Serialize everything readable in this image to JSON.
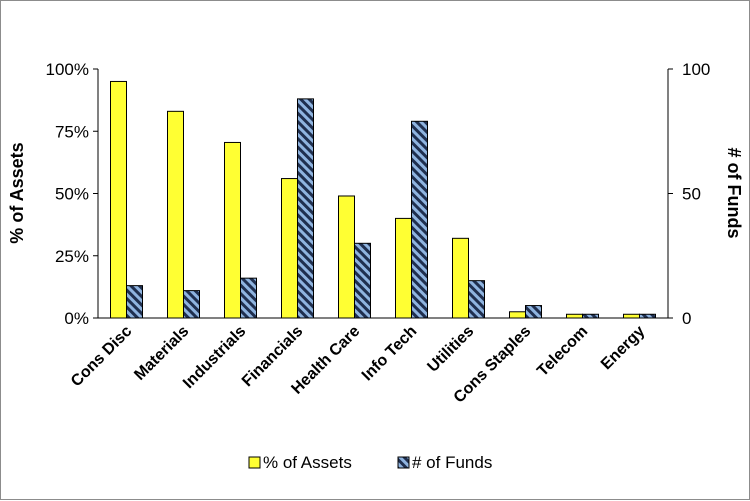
{
  "chart_data": {
    "type": "bar",
    "title": "",
    "categories": [
      "Cons Disc",
      "Materials",
      "Industrials",
      "Financials",
      "Health Care",
      "Info Tech",
      "Utilities",
      "Cons Staples",
      "Telecom",
      "Energy"
    ],
    "series": [
      {
        "name": "% of Assets",
        "axis": "left",
        "color": "#ffff33",
        "values": [
          95,
          83,
          70.5,
          56,
          49,
          40,
          32,
          2.5,
          1.5,
          1.5
        ]
      },
      {
        "name": "# of Funds",
        "axis": "right",
        "color": "#1f2f4f",
        "pattern_color": "#8fb4e0",
        "values": [
          13,
          11,
          16,
          88,
          30,
          79,
          15,
          5,
          1.5,
          1.5
        ]
      }
    ],
    "y_left": {
      "label": "% of Assets",
      "ylim": [
        0,
        100
      ],
      "ticks": [
        "0%",
        "25%",
        "50%",
        "75%",
        "100%"
      ],
      "tick_values": [
        0,
        25,
        50,
        75,
        100
      ]
    },
    "y_right": {
      "label": "# of Funds",
      "ylim": [
        0,
        100
      ],
      "ticks": [
        "0",
        "50",
        "100"
      ],
      "tick_values": [
        0,
        50,
        100
      ]
    },
    "xlabel": "",
    "grid": false,
    "legend": "bottom"
  }
}
